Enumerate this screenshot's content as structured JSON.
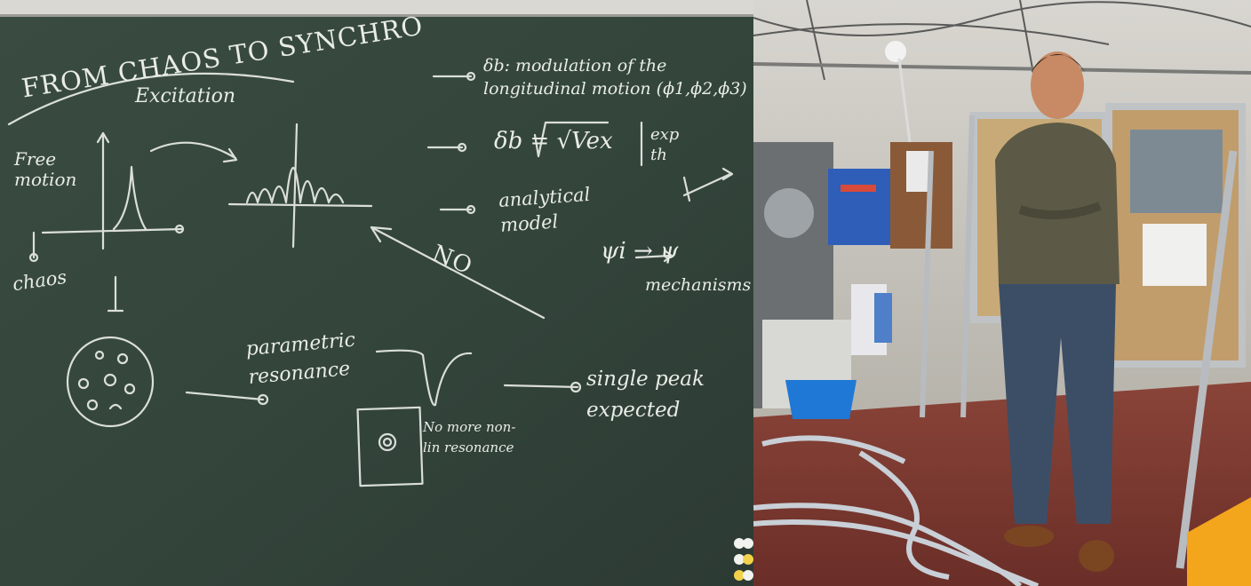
{
  "colors": {
    "board": "#36483e",
    "board_frame": "#d9d8d2",
    "chalk": "#e9ece6",
    "lab_floor": "#7a3a32",
    "wall": "#c9c4b8"
  },
  "board": {
    "title": "FROM CHAOS TO SYNCHRO",
    "excitation": "Excitation",
    "free_motion": "Free motion",
    "chaos": "chaos",
    "no": "NO",
    "delta_b": "δb: modulation of the longitudinal motion (ϕ1,ϕ2,ϕ3)",
    "delta_b_formula": "δb = √Vex",
    "exp_th": "exp th",
    "analytical_model": "analytical model",
    "psi": "ψi → ψ",
    "mechanisms": "mechanisms",
    "parametric_resonance": "parametric resonance",
    "single_peak": "single peak expected",
    "no_more_resonance": "No more non-lin resonance"
  },
  "lab": {
    "people": 1,
    "icons": [
      "lamp-icon",
      "cabinet-icon",
      "poster-icon",
      "bucket-icon",
      "hose-icon",
      "person-icon",
      "frame-icon"
    ]
  }
}
